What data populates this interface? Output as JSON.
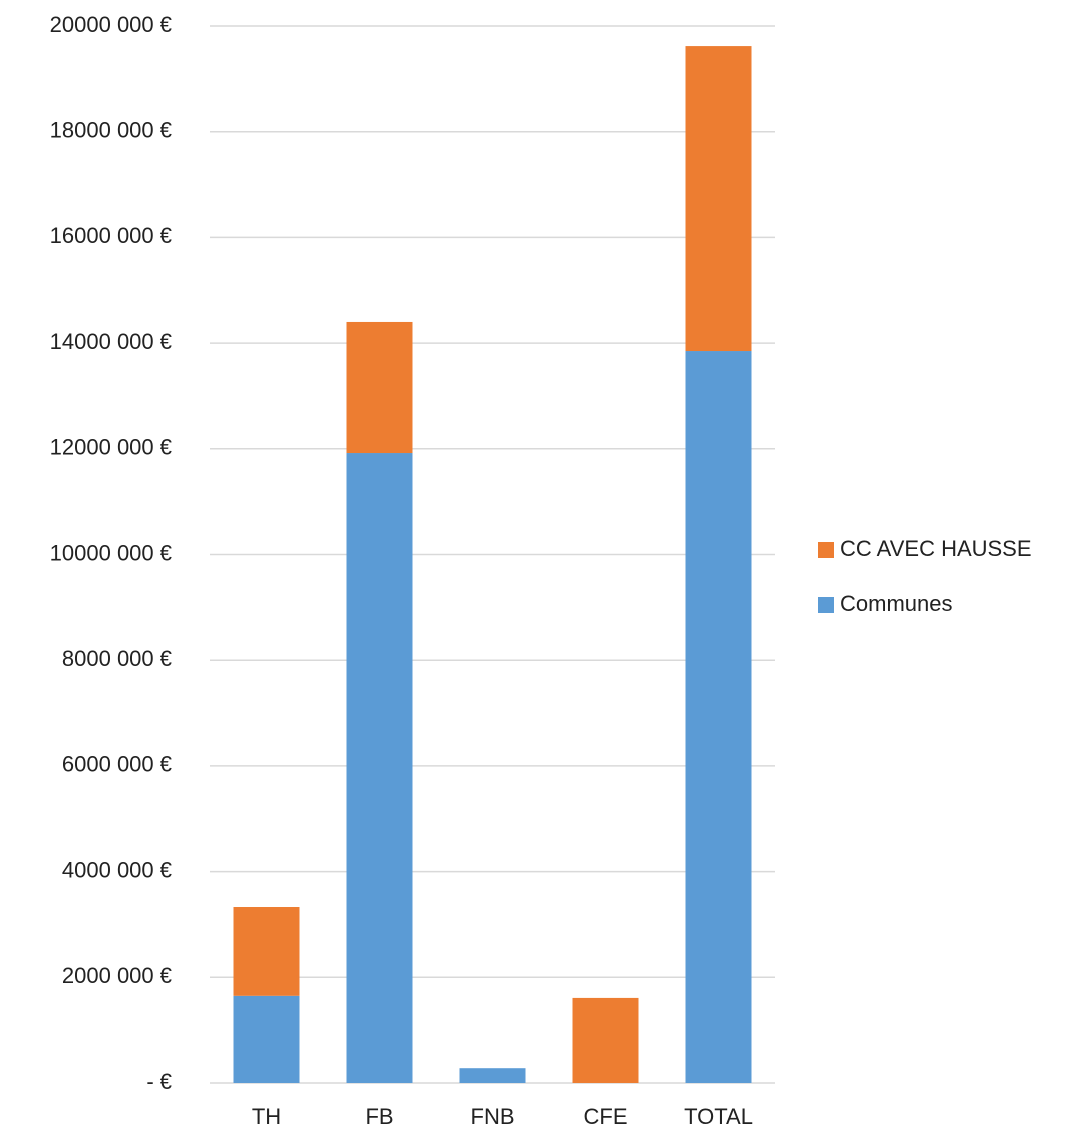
{
  "chart_data": {
    "type": "stacked_bar",
    "categories": [
      "TH",
      "FB",
      "FNB",
      "CFE",
      "TOTAL"
    ],
    "series": [
      {
        "name": "Communes",
        "color": "#5b9bd5",
        "values": [
          1650000,
          11920000,
          280000,
          0,
          13850000
        ]
      },
      {
        "name": "CC AVEC HAUSSE",
        "color": "#ed7d31",
        "values": [
          1680000,
          2480000,
          0,
          1610000,
          5770000
        ]
      }
    ],
    "ylim": [
      0,
      20000000
    ],
    "yticks": [
      {
        "value": 0,
        "label": "-   €"
      },
      {
        "value": 2000000,
        "label": "2000 000 €"
      },
      {
        "value": 4000000,
        "label": "4000 000 €"
      },
      {
        "value": 6000000,
        "label": "6000 000 €"
      },
      {
        "value": 8000000,
        "label": "8000 000 €"
      },
      {
        "value": 10000000,
        "label": "10000 000 €"
      },
      {
        "value": 12000000,
        "label": "12000 000 €"
      },
      {
        "value": 14000000,
        "label": "14000 000 €"
      },
      {
        "value": 16000000,
        "label": "16000 000 €"
      },
      {
        "value": 18000000,
        "label": "18000 000 €"
      },
      {
        "value": 20000000,
        "label": "20000 000 €"
      }
    ],
    "grid": true,
    "legend": "right"
  }
}
